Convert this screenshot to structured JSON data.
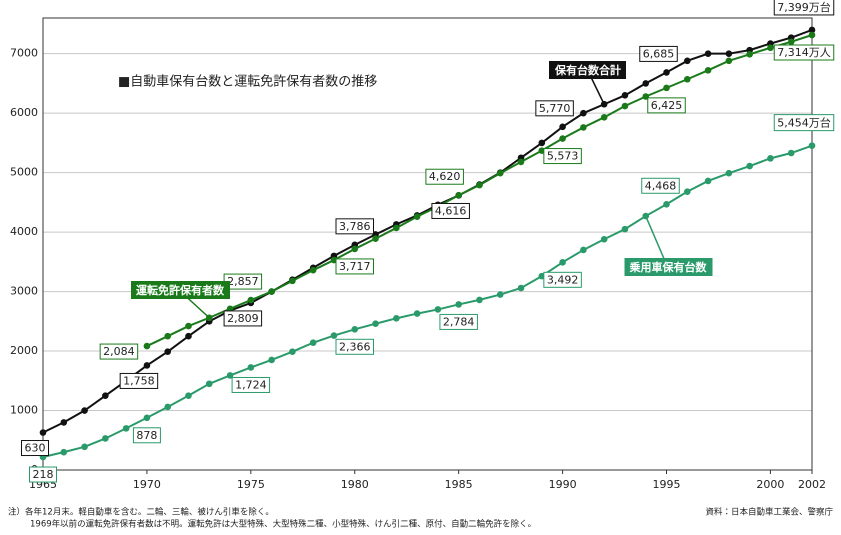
{
  "chart_data": {
    "type": "line",
    "title": "■自動車保有台数と運転免許保有者数の推移",
    "x": [
      1965,
      1966,
      1967,
      1968,
      1969,
      1970,
      1971,
      1972,
      1973,
      1974,
      1975,
      1976,
      1977,
      1978,
      1979,
      1980,
      1981,
      1982,
      1983,
      1984,
      1985,
      1986,
      1987,
      1988,
      1989,
      1990,
      1991,
      1992,
      1993,
      1994,
      1995,
      1996,
      1997,
      1998,
      1999,
      2000,
      2001,
      2002
    ],
    "xlim": [
      1965,
      2002
    ],
    "xticks": [
      1965,
      1970,
      1975,
      1980,
      1985,
      1990,
      1995,
      2000,
      2002
    ],
    "ylim": [
      0,
      7600
    ],
    "yticks": [
      0,
      1000,
      2000,
      3000,
      4000,
      5000,
      6000,
      7000
    ],
    "grid": true,
    "series": [
      {
        "name": "保有台数合計",
        "color": "#111111",
        "values": [
          630,
          800,
          1000,
          1250,
          1500,
          1758,
          1990,
          2250,
          2500,
          2680,
          2809,
          3000,
          3200,
          3400,
          3600,
          3786,
          3960,
          4130,
          4280,
          4460,
          4616,
          4800,
          5000,
          5250,
          5500,
          5770,
          6000,
          6150,
          6300,
          6500,
          6685,
          6880,
          7000,
          7000,
          7060,
          7170,
          7270,
          7399
        ],
        "value_labels": [
          "630",
          null,
          null,
          null,
          null,
          "1,758",
          null,
          null,
          null,
          null,
          "2,809",
          null,
          null,
          null,
          null,
          "3,786",
          null,
          null,
          null,
          null,
          "4,616",
          null,
          null,
          null,
          null,
          "5,770",
          null,
          null,
          null,
          null,
          "6,685",
          null,
          null,
          null,
          null,
          null,
          null,
          "7,399万台"
        ]
      },
      {
        "name": "運転免許保有者数",
        "color": "#1a7a1a",
        "values": [
          null,
          null,
          null,
          null,
          null,
          2084,
          2250,
          2420,
          2560,
          2710,
          2857,
          3000,
          3180,
          3360,
          3530,
          3717,
          3890,
          4070,
          4260,
          4430,
          4620,
          4790,
          4990,
          5180,
          5370,
          5573,
          5760,
          5930,
          6120,
          6280,
          6425,
          6570,
          6720,
          6880,
          6990,
          7100,
          7200,
          7314
        ],
        "value_labels": [
          null,
          null,
          null,
          null,
          null,
          "2,084",
          null,
          null,
          null,
          null,
          "2,857",
          null,
          null,
          null,
          null,
          "3,717",
          null,
          null,
          null,
          null,
          "4,620",
          null,
          null,
          null,
          null,
          "5,573",
          null,
          null,
          null,
          null,
          "6,425",
          null,
          null,
          null,
          null,
          null,
          null,
          "7,314万人"
        ]
      },
      {
        "name": "乗用車保有台数",
        "color": "#2a9a6a",
        "values": [
          218,
          300,
          390,
          530,
          700,
          878,
          1060,
          1250,
          1450,
          1590,
          1724,
          1850,
          1990,
          2140,
          2260,
          2366,
          2460,
          2550,
          2630,
          2700,
          2784,
          2860,
          2950,
          3060,
          3260,
          3492,
          3700,
          3880,
          4050,
          4270,
          4468,
          4680,
          4860,
          4990,
          5110,
          5240,
          5330,
          5454
        ],
        "value_labels": [
          "218",
          null,
          null,
          null,
          null,
          "878",
          null,
          null,
          null,
          null,
          "1,724",
          null,
          null,
          null,
          null,
          "2,366",
          null,
          null,
          null,
          null,
          "2,784",
          null,
          null,
          null,
          null,
          "3,492",
          null,
          null,
          null,
          null,
          "4,468",
          null,
          null,
          null,
          null,
          null,
          null,
          "5,454万台"
        ]
      }
    ],
    "notes": [
      "注）各年12月末。軽自動車を含む。二輪、三輪、被けん引車を除く。",
      "1969年以前の運転免許保有者数は不明。運転免許は大型特殊、大型特殊二種、小型特殊、けん引二種、原付、自動二輪免許を除く。"
    ],
    "source": "資料：日本自動車工業会、警察庁"
  }
}
